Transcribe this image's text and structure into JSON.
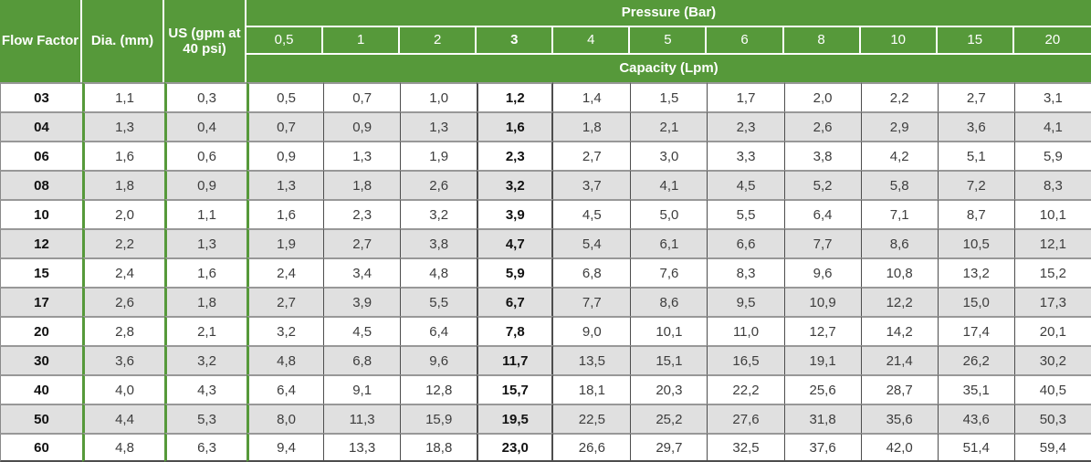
{
  "chart_data": {
    "type": "table",
    "title": "Pressure (Bar)",
    "subtitle": "Capacity (Lpm)",
    "fixed_column_headers": [
      "Flow Factor",
      "Dia. (mm)",
      "US (gpm at 40 psi)"
    ],
    "pressure_columns_bar": [
      "0,5",
      "1",
      "2",
      "3",
      "4",
      "5",
      "6",
      "8",
      "10",
      "15",
      "20"
    ],
    "emphasized_pressure_column": "3",
    "rows": [
      {
        "flow_factor": "03",
        "dia_mm": "1,1",
        "us_gpm": "0,3",
        "capacity_lpm": [
          "0,5",
          "0,7",
          "1,0",
          "1,2",
          "1,4",
          "1,5",
          "1,7",
          "2,0",
          "2,2",
          "2,7",
          "3,1"
        ]
      },
      {
        "flow_factor": "04",
        "dia_mm": "1,3",
        "us_gpm": "0,4",
        "capacity_lpm": [
          "0,7",
          "0,9",
          "1,3",
          "1,6",
          "1,8",
          "2,1",
          "2,3",
          "2,6",
          "2,9",
          "3,6",
          "4,1"
        ]
      },
      {
        "flow_factor": "06",
        "dia_mm": "1,6",
        "us_gpm": "0,6",
        "capacity_lpm": [
          "0,9",
          "1,3",
          "1,9",
          "2,3",
          "2,7",
          "3,0",
          "3,3",
          "3,8",
          "4,2",
          "5,1",
          "5,9"
        ]
      },
      {
        "flow_factor": "08",
        "dia_mm": "1,8",
        "us_gpm": "0,9",
        "capacity_lpm": [
          "1,3",
          "1,8",
          "2,6",
          "3,2",
          "3,7",
          "4,1",
          "4,5",
          "5,2",
          "5,8",
          "7,2",
          "8,3"
        ]
      },
      {
        "flow_factor": "10",
        "dia_mm": "2,0",
        "us_gpm": "1,1",
        "capacity_lpm": [
          "1,6",
          "2,3",
          "3,2",
          "3,9",
          "4,5",
          "5,0",
          "5,5",
          "6,4",
          "7,1",
          "8,7",
          "10,1"
        ]
      },
      {
        "flow_factor": "12",
        "dia_mm": "2,2",
        "us_gpm": "1,3",
        "capacity_lpm": [
          "1,9",
          "2,7",
          "3,8",
          "4,7",
          "5,4",
          "6,1",
          "6,6",
          "7,7",
          "8,6",
          "10,5",
          "12,1"
        ]
      },
      {
        "flow_factor": "15",
        "dia_mm": "2,4",
        "us_gpm": "1,6",
        "capacity_lpm": [
          "2,4",
          "3,4",
          "4,8",
          "5,9",
          "6,8",
          "7,6",
          "8,3",
          "9,6",
          "10,8",
          "13,2",
          "15,2"
        ]
      },
      {
        "flow_factor": "17",
        "dia_mm": "2,6",
        "us_gpm": "1,8",
        "capacity_lpm": [
          "2,7",
          "3,9",
          "5,5",
          "6,7",
          "7,7",
          "8,6",
          "9,5",
          "10,9",
          "12,2",
          "15,0",
          "17,3"
        ]
      },
      {
        "flow_factor": "20",
        "dia_mm": "2,8",
        "us_gpm": "2,1",
        "capacity_lpm": [
          "3,2",
          "4,5",
          "6,4",
          "7,8",
          "9,0",
          "10,1",
          "11,0",
          "12,7",
          "14,2",
          "17,4",
          "20,1"
        ]
      },
      {
        "flow_factor": "30",
        "dia_mm": "3,6",
        "us_gpm": "3,2",
        "capacity_lpm": [
          "4,8",
          "6,8",
          "9,6",
          "11,7",
          "13,5",
          "15,1",
          "16,5",
          "19,1",
          "21,4",
          "26,2",
          "30,2"
        ]
      },
      {
        "flow_factor": "40",
        "dia_mm": "4,0",
        "us_gpm": "4,3",
        "capacity_lpm": [
          "6,4",
          "9,1",
          "12,8",
          "15,7",
          "18,1",
          "20,3",
          "22,2",
          "25,6",
          "28,7",
          "35,1",
          "40,5"
        ]
      },
      {
        "flow_factor": "50",
        "dia_mm": "4,4",
        "us_gpm": "5,3",
        "capacity_lpm": [
          "8,0",
          "11,3",
          "15,9",
          "19,5",
          "22,5",
          "25,2",
          "27,6",
          "31,8",
          "35,6",
          "43,6",
          "50,3"
        ]
      },
      {
        "flow_factor": "60",
        "dia_mm": "4,8",
        "us_gpm": "6,3",
        "capacity_lpm": [
          "9,4",
          "13,3",
          "18,8",
          "23,0",
          "26,6",
          "29,7",
          "32,5",
          "37,6",
          "42,0",
          "51,4",
          "59,4"
        ]
      }
    ]
  },
  "header": {
    "flow_factor": "Flow Factor",
    "dia": "Dia. (mm)",
    "us_gpm": "US (gpm at 40 psi)",
    "pressure_title": "Pressure (Bar)",
    "capacity_title": "Capacity (Lpm)"
  },
  "colors": {
    "header_green": "#56993a",
    "stripe_gray": "#e0e0e0",
    "grid_dark": "#4d4d4d",
    "grid_gray": "#989898",
    "text_dark": "#3d3d3d",
    "text_black": "#111111",
    "header_text": "#ffffff"
  }
}
